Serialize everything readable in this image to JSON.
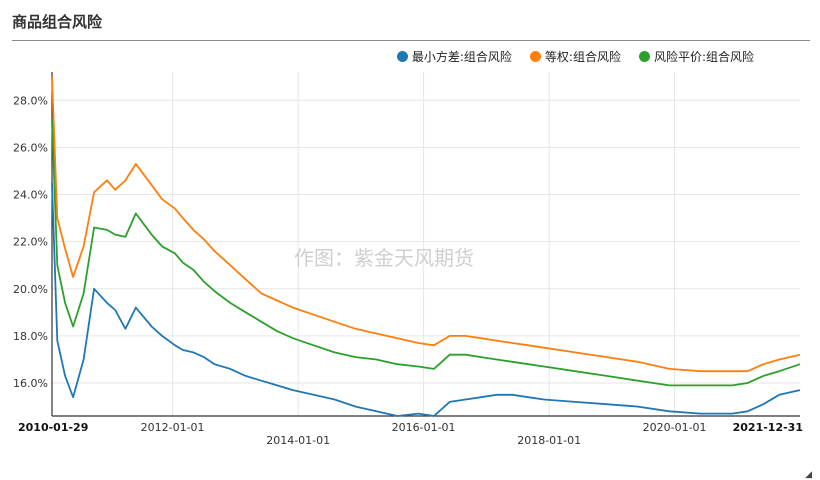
{
  "title": "商品组合风险",
  "watermark": "作图：紫金天风期货",
  "chart_data": {
    "type": "line",
    "ylim": [
      0.146,
      0.292
    ],
    "y_ticks": [
      0.16,
      0.18,
      0.2,
      0.22,
      0.24,
      0.26,
      0.28
    ],
    "y_tick_labels": [
      "16.0%",
      "18.0%",
      "20.0%",
      "22.0%",
      "24.0%",
      "26.0%",
      "28.0%"
    ],
    "x_range": [
      "2010-01-29",
      "2021-12-31"
    ],
    "x_ticks": [
      {
        "date": "2010-01-29",
        "label": "2010-01-29",
        "row": 1,
        "bold": true
      },
      {
        "date": "2012-01-01",
        "label": "2012-01-01",
        "row": 1,
        "bold": false
      },
      {
        "date": "2014-01-01",
        "label": "2014-01-01",
        "row": 2,
        "bold": false
      },
      {
        "date": "2016-01-01",
        "label": "2016-01-01",
        "row": 1,
        "bold": false
      },
      {
        "date": "2018-01-01",
        "label": "2018-01-01",
        "row": 2,
        "bold": false
      },
      {
        "date": "2020-01-01",
        "label": "2020-01-01",
        "row": 1,
        "bold": false
      },
      {
        "date": "2021-12-31",
        "label": "2021-12-31",
        "row": 1,
        "bold": true
      }
    ],
    "grid": true,
    "legend_position": "top-right",
    "x": [
      "2010-01-29",
      "2010-03-01",
      "2010-04-15",
      "2010-06-01",
      "2010-08-01",
      "2010-10-01",
      "2010-12-15",
      "2011-02-01",
      "2011-04-01",
      "2011-06-01",
      "2011-09-01",
      "2011-11-01",
      "2012-01-15",
      "2012-03-01",
      "2012-05-01",
      "2012-07-01",
      "2012-09-01",
      "2012-12-01",
      "2013-03-01",
      "2013-06-01",
      "2013-09-01",
      "2013-12-01",
      "2014-04-01",
      "2014-08-01",
      "2014-12-01",
      "2015-04-01",
      "2015-08-01",
      "2015-12-01",
      "2016-03-01",
      "2016-06-01",
      "2016-09-01",
      "2016-12-01",
      "2017-03-01",
      "2017-06-01",
      "2017-09-01",
      "2017-12-01",
      "2018-06-01",
      "2018-12-01",
      "2019-06-01",
      "2019-12-01",
      "2020-06-01",
      "2020-12-01",
      "2021-03-01",
      "2021-06-01",
      "2021-09-01",
      "2021-12-31"
    ],
    "series": [
      {
        "name": "最小方差:组合风险",
        "color": "#1f77b4",
        "values": [
          0.245,
          0.178,
          0.163,
          0.154,
          0.17,
          0.2,
          0.194,
          0.191,
          0.183,
          0.192,
          0.184,
          0.18,
          0.176,
          0.174,
          0.173,
          0.171,
          0.168,
          0.166,
          0.163,
          0.161,
          0.159,
          0.157,
          0.155,
          0.153,
          0.15,
          0.148,
          0.146,
          0.147,
          0.146,
          0.152,
          0.153,
          0.154,
          0.155,
          0.155,
          0.154,
          0.153,
          0.152,
          0.151,
          0.15,
          0.148,
          0.147,
          0.147,
          0.148,
          0.151,
          0.155,
          0.157
        ]
      },
      {
        "name": "等权:组合风险",
        "color": "#ff7f0e",
        "values": [
          0.29,
          0.23,
          0.217,
          0.205,
          0.218,
          0.241,
          0.246,
          0.242,
          0.246,
          0.253,
          0.244,
          0.238,
          0.234,
          0.23,
          0.225,
          0.221,
          0.216,
          0.21,
          0.204,
          0.198,
          0.195,
          0.192,
          0.189,
          0.186,
          0.183,
          0.181,
          0.179,
          0.177,
          0.176,
          0.18,
          0.18,
          0.179,
          0.178,
          0.177,
          0.176,
          0.175,
          0.173,
          0.171,
          0.169,
          0.166,
          0.165,
          0.165,
          0.165,
          0.168,
          0.17,
          0.172
        ]
      },
      {
        "name": "风险平价:组合风险",
        "color": "#2ca02c",
        "values": [
          0.272,
          0.21,
          0.194,
          0.184,
          0.198,
          0.226,
          0.225,
          0.223,
          0.222,
          0.232,
          0.223,
          0.218,
          0.215,
          0.211,
          0.208,
          0.203,
          0.199,
          0.194,
          0.19,
          0.186,
          0.182,
          0.179,
          0.176,
          0.173,
          0.171,
          0.17,
          0.168,
          0.167,
          0.166,
          0.172,
          0.172,
          0.171,
          0.17,
          0.169,
          0.168,
          0.167,
          0.165,
          0.163,
          0.161,
          0.159,
          0.159,
          0.159,
          0.16,
          0.163,
          0.165,
          0.168
        ]
      }
    ]
  }
}
